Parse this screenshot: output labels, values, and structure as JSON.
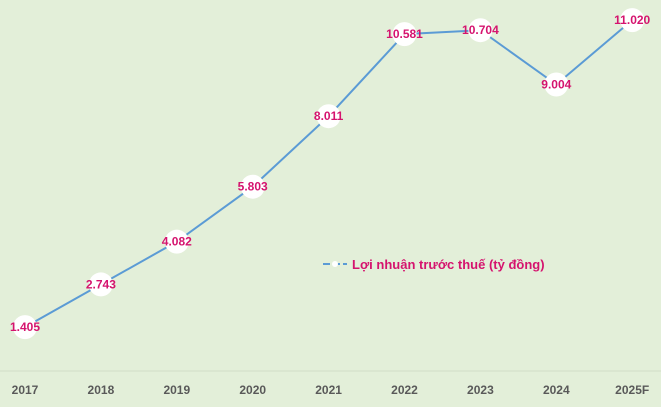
{
  "chart_data": {
    "type": "line",
    "title": "",
    "xlabel": "",
    "ylabel": "",
    "categories": [
      "2017",
      "2018",
      "2019",
      "2020",
      "2021",
      "2022",
      "2023",
      "2024",
      "2025F"
    ],
    "series": [
      {
        "name": "Lợi nhuận trước thuế (tỷ đồng)",
        "values": [
          1405,
          2743,
          4082,
          5803,
          8011,
          10581,
          10704,
          9004,
          11020
        ],
        "labels": [
          "1.405",
          "2.743",
          "4.082",
          "5.803",
          "8.011",
          "10.581",
          "10.704",
          "9.004",
          "11.020"
        ]
      }
    ],
    "ylim": [
      0,
      11650
    ],
    "grid": false,
    "legend_placement": "center-right",
    "colors": {
      "background": "#e3efd9",
      "line": "#5b9bd5",
      "marker": "#ffffff",
      "data_label": "#d5136e",
      "tick_label": "#595959",
      "axis": "#d0dcc6"
    }
  }
}
